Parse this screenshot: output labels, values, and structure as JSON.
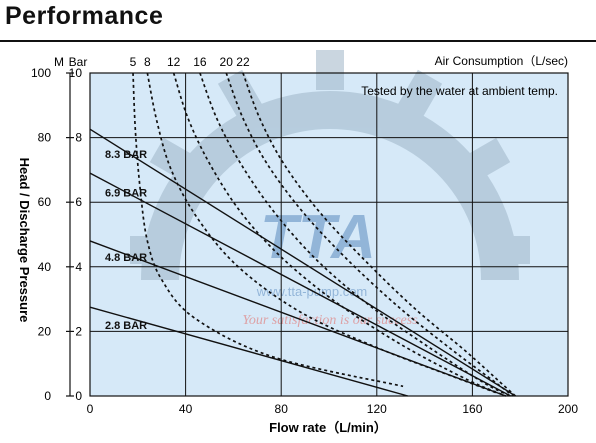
{
  "page": {
    "title": "Performance"
  },
  "watermark": {
    "logo_text": "TTA",
    "url_text": "www.tta-pump.com",
    "tagline": "Your satisfaction is our success",
    "colors": {
      "gear": "#9fb6c8",
      "text": "#5c8bbf",
      "tagline": "#e08a8a"
    }
  },
  "colors": {
    "plot_bg": "#d6e9f8",
    "curve": "#111111",
    "grid": "#111111"
  },
  "chart_data": {
    "type": "line",
    "title": "",
    "xlabel": "Flow rate（L/min）",
    "ylabel": "Head / Discharge Pressure",
    "xlim": [
      0,
      200
    ],
    "ylim_m": [
      0,
      100
    ],
    "ylim_bar": [
      0,
      10
    ],
    "x_ticks": [
      "0",
      "40",
      "80",
      "120",
      "160",
      "200"
    ],
    "y_ticks_m": [
      "0",
      "20",
      "40",
      "60",
      "80",
      "100"
    ],
    "y_ticks_bar": [
      "0",
      "2",
      "4",
      "6",
      "8",
      "10"
    ],
    "y_unit_m": "M",
    "y_unit_bar": "Bar",
    "top_axis_label": "Air Consumption（L/sec)",
    "top_ticks": [
      "5",
      "8",
      "12",
      "16",
      "20",
      "22"
    ],
    "annotation": "Tested by the water at ambient temp.",
    "grid": true,
    "series": [
      {
        "name": "8.3 BAR",
        "style": "solid",
        "label_at": [
          5,
          75
        ],
        "x": [
          0,
          178
        ],
        "y": [
          82.6,
          0
        ]
      },
      {
        "name": "6.9 BAR",
        "style": "solid",
        "label_at": [
          5,
          63
        ],
        "x": [
          0,
          176
        ],
        "y": [
          69,
          0
        ]
      },
      {
        "name": "4.8 BAR",
        "style": "solid",
        "label_at": [
          5,
          43
        ],
        "x": [
          0,
          174
        ],
        "y": [
          48,
          0
        ]
      },
      {
        "name": "2.8 BAR",
        "style": "solid",
        "label_at": [
          5,
          22
        ],
        "x": [
          0,
          133
        ],
        "y": [
          27.5,
          0
        ]
      }
    ],
    "air_consumption": [
      {
        "name": "5",
        "style": "dashed",
        "x": [
          18,
          19,
          21,
          24,
          30,
          44,
          77,
          131
        ],
        "y": [
          100,
          82,
          64,
          48,
          36,
          24,
          12,
          3
        ]
      },
      {
        "name": "8",
        "style": "dashed",
        "x": [
          24,
          28,
          34,
          45,
          62,
          88,
          120,
          152,
          170
        ],
        "y": [
          100,
          85,
          70,
          55,
          40,
          26,
          15,
          6,
          1
        ]
      },
      {
        "name": "12",
        "style": "dashed",
        "x": [
          35,
          41,
          50,
          63,
          80,
          103,
          130,
          158,
          174
        ],
        "y": [
          100,
          86,
          72,
          57,
          43,
          29,
          16,
          5,
          0
        ]
      },
      {
        "name": "16",
        "style": "dashed",
        "x": [
          46,
          53,
          63,
          77,
          95,
          117,
          142,
          165,
          176
        ],
        "y": [
          100,
          86,
          72,
          57,
          42,
          28,
          15,
          4,
          0
        ]
      },
      {
        "name": "20",
        "style": "dashed",
        "x": [
          57,
          64,
          74,
          89,
          108,
          130,
          152,
          170,
          177
        ],
        "y": [
          100,
          86,
          72,
          57,
          42,
          27,
          14,
          4,
          0
        ]
      },
      {
        "name": "22",
        "style": "dashed",
        "x": [
          64,
          71,
          81,
          96,
          115,
          136,
          157,
          172,
          178
        ],
        "y": [
          100,
          86,
          72,
          57,
          42,
          27,
          14,
          4,
          0
        ]
      }
    ]
  }
}
